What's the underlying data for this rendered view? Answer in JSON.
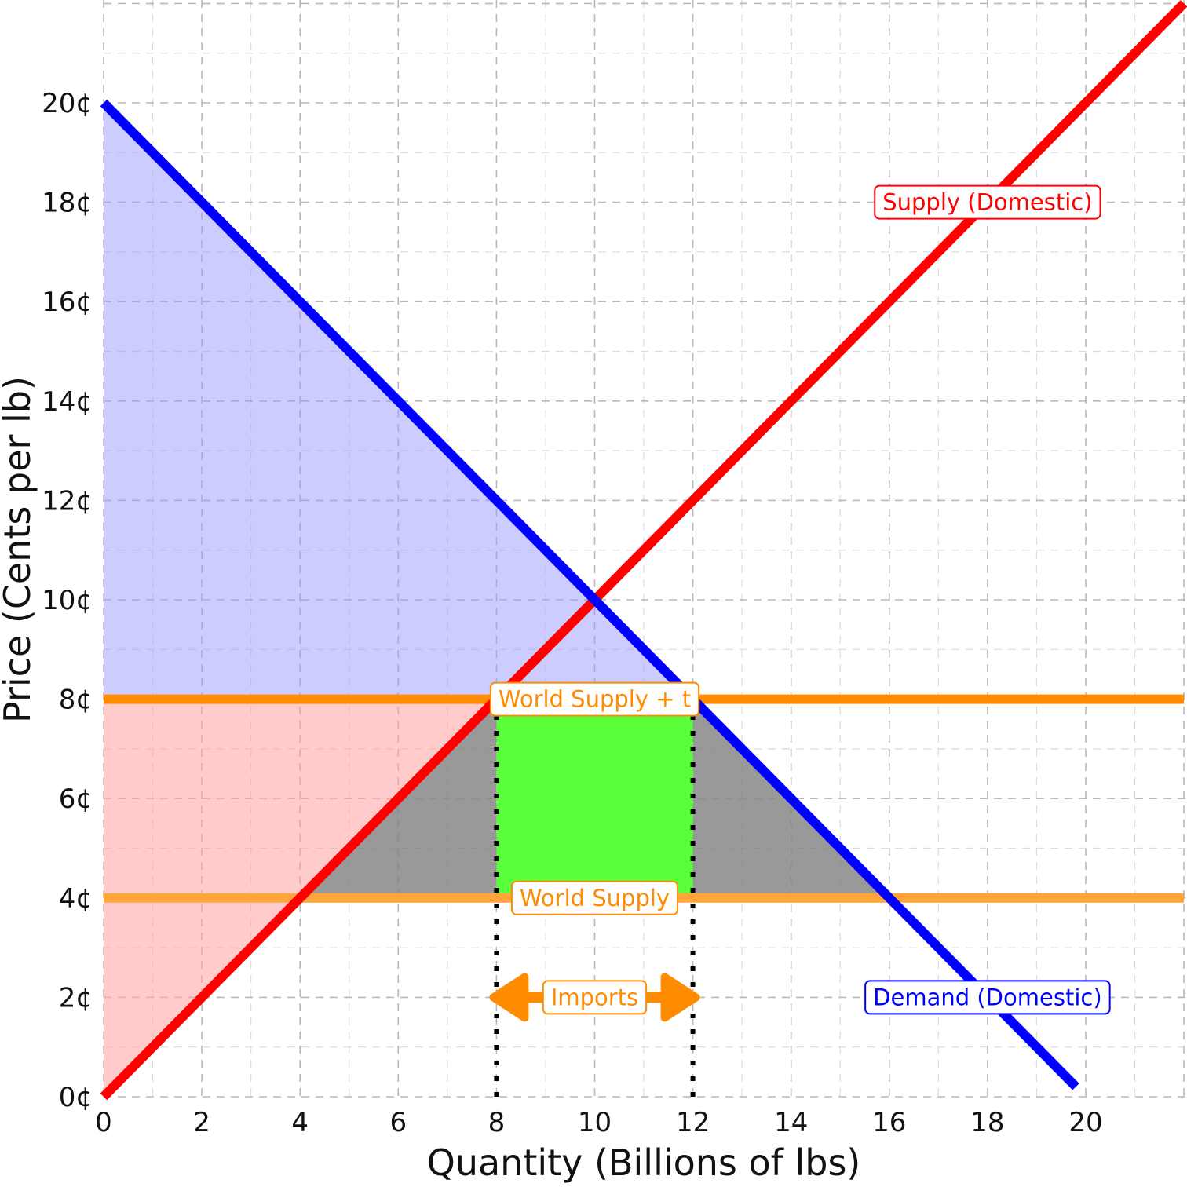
{
  "chart_data": {
    "type": "line",
    "xlabel": "Quantity (Billions of lbs)",
    "ylabel": "Price (Cents per lb)",
    "xlim": [
      0,
      22
    ],
    "ylim": [
      0,
      22
    ],
    "x_ticks": [
      0,
      2,
      4,
      6,
      8,
      10,
      12,
      14,
      16,
      18,
      20
    ],
    "x_tick_labels": [
      "0",
      "2",
      "4",
      "6",
      "8",
      "10",
      "12",
      "14",
      "16",
      "18",
      "20"
    ],
    "y_ticks": [
      0,
      2,
      4,
      6,
      8,
      10,
      12,
      14,
      16,
      18,
      20
    ],
    "y_tick_labels": [
      "0¢",
      "2¢",
      "4¢",
      "6¢",
      "8¢",
      "10¢",
      "12¢",
      "14¢",
      "16¢",
      "18¢",
      "20¢"
    ],
    "grid": true,
    "series": [
      {
        "name": "Supply (Domestic)",
        "x": [
          0,
          22
        ],
        "y": [
          0,
          22
        ],
        "color": "#ff0000"
      },
      {
        "name": "Demand (Domestic)",
        "x": [
          0,
          19.8
        ],
        "y": [
          20,
          0.2
        ],
        "color": "#0000ff"
      },
      {
        "name": "World Supply + t",
        "x": [
          0,
          22
        ],
        "y": [
          8,
          8
        ],
        "color": "#ff8c00"
      },
      {
        "name": "World Supply",
        "x": [
          0,
          22
        ],
        "y": [
          4,
          4
        ],
        "color": "#ffa53a"
      }
    ],
    "shaded_regions": [
      {
        "fill": "#9a9aff",
        "opacity": 0.5,
        "points": [
          [
            0,
            20
          ],
          [
            0,
            8
          ],
          [
            12,
            8
          ]
        ]
      },
      {
        "fill": "#ffa0a0",
        "opacity": 0.55,
        "points": [
          [
            0,
            8
          ],
          [
            8,
            8
          ],
          [
            0,
            0
          ]
        ]
      },
      {
        "fill": "#808080",
        "opacity": 0.8,
        "points": [
          [
            4,
            4
          ],
          [
            8,
            8
          ],
          [
            8,
            4
          ]
        ]
      },
      {
        "fill": "#808080",
        "opacity": 0.8,
        "points": [
          [
            12,
            4
          ],
          [
            12,
            8
          ],
          [
            16,
            4
          ]
        ]
      },
      {
        "fill": "#5aff3c",
        "opacity": 1,
        "points": [
          [
            8,
            4
          ],
          [
            8,
            8
          ],
          [
            12,
            8
          ],
          [
            12,
            4
          ]
        ]
      }
    ],
    "reference_lines": [
      {
        "x": 8,
        "from_y": 0,
        "to_y": 8
      },
      {
        "x": 12,
        "from_y": 0,
        "to_y": 8
      }
    ],
    "imports_arrow": {
      "from_x": 8,
      "to_x": 12,
      "y": 2,
      "color": "#ff8c00"
    },
    "annotations": [
      {
        "text": "Supply (Domestic)",
        "x": 18,
        "y": 18,
        "color": "#ff0000"
      },
      {
        "text": "World Supply + t",
        "x": 10,
        "y": 8,
        "color": "#ff8c00"
      },
      {
        "text": "World Supply",
        "x": 10,
        "y": 4,
        "color": "#ff8c00"
      },
      {
        "text": "Imports",
        "x": 10,
        "y": 2,
        "color": "#ff8c00"
      },
      {
        "text": "Demand (Domestic)",
        "x": 18,
        "y": 2,
        "color": "#0000ff"
      }
    ]
  }
}
